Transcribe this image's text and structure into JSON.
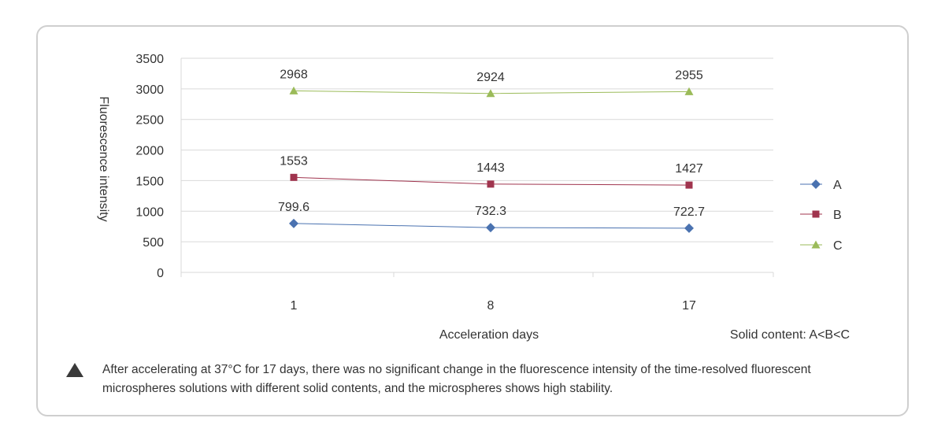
{
  "chart_data": {
    "type": "line",
    "categories": [
      "1",
      "8",
      "17"
    ],
    "series": [
      {
        "name": "A",
        "values": [
          799.6,
          732.3,
          722.7
        ],
        "color": "#4a72b0",
        "marker": "diamond",
        "labels": [
          "799.6",
          "732.3",
          "722.7"
        ]
      },
      {
        "name": "B",
        "values": [
          1553,
          1443,
          1427
        ],
        "color": "#a0344e",
        "marker": "square",
        "labels": [
          "1553",
          "1443",
          "1427"
        ]
      },
      {
        "name": "C",
        "values": [
          2968,
          2924,
          2955
        ],
        "color": "#9bbb59",
        "marker": "triangle",
        "labels": [
          "2968",
          "2924",
          "2955"
        ]
      }
    ],
    "xlabel": "Acceleration days",
    "ylabel": "Fluorescence intensity",
    "ylim": [
      0,
      3500
    ],
    "yticks": [
      0,
      500,
      1000,
      1500,
      2000,
      2500,
      3000,
      3500
    ],
    "grid": true,
    "legend": "right",
    "annotation": "Solid content: A<B<C"
  },
  "note": {
    "icon": "triangle-icon",
    "text": "After accelerating at 37°C for 17 days, there was no significant change in the fluorescence intensity of the time-resolved fluorescent microspheres solutions with different solid contents, and the microspheres shows high stability."
  }
}
